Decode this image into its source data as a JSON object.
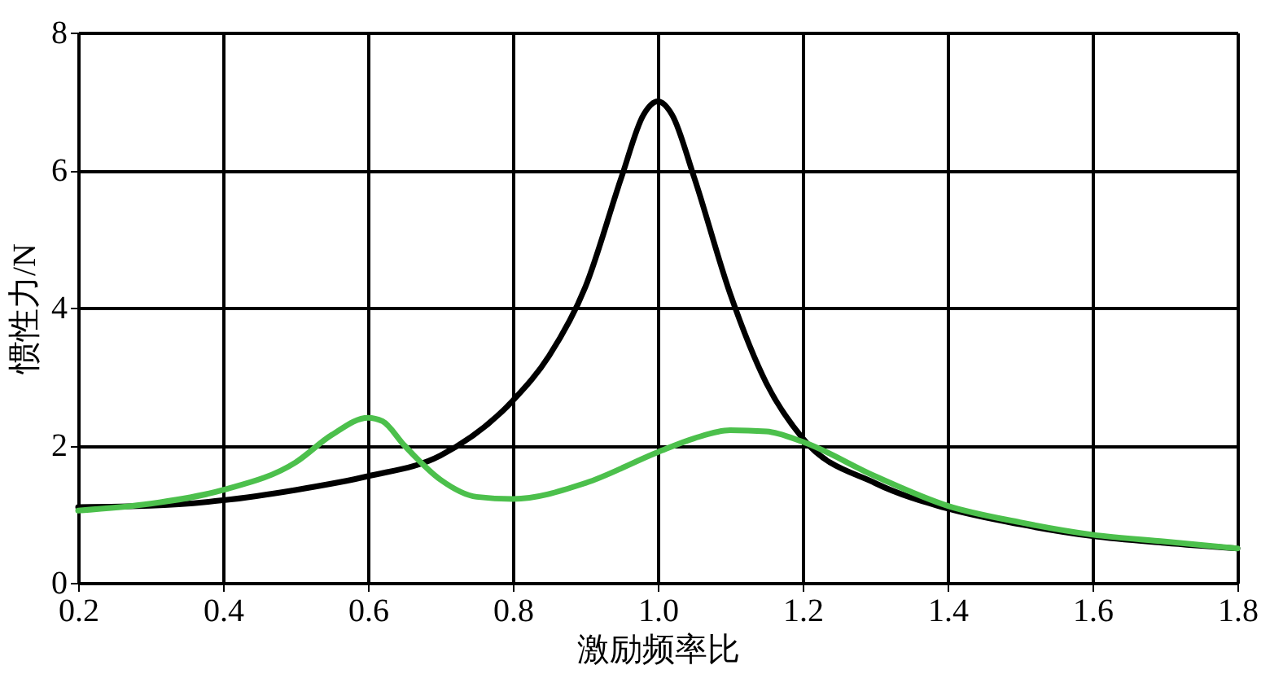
{
  "chart_data": {
    "type": "line",
    "xlabel": "激励频率比",
    "ylabel": "惯性力/N",
    "xlim": [
      0.2,
      1.8
    ],
    "xticks": [
      {
        "value": 0.2,
        "label": "0.2"
      },
      {
        "value": 0.4,
        "label": "0.4"
      },
      {
        "value": 0.6,
        "label": "0.6"
      },
      {
        "value": 0.8,
        "label": "0.8"
      },
      {
        "value": 1.0,
        "label": "1.0"
      },
      {
        "value": 1.2,
        "label": "1.2"
      },
      {
        "value": 1.4,
        "label": "1.4"
      },
      {
        "value": 1.6,
        "label": "1.6"
      },
      {
        "value": 1.8,
        "label": "1.8"
      }
    ],
    "ylim": [
      0,
      8
    ],
    "yticks": [
      0,
      2,
      4,
      6,
      8
    ],
    "grid": true,
    "marker": "none",
    "line_style": "solid",
    "series": [
      {
        "color": "#000000",
        "x": [
          0.2,
          0.3,
          0.4,
          0.5,
          0.6,
          0.7,
          0.8,
          0.85,
          0.9,
          0.95,
          0.98,
          1.0,
          1.02,
          1.05,
          1.1,
          1.15,
          1.2,
          1.3,
          1.4,
          1.5,
          1.6,
          1.7,
          1.8
        ],
        "values": [
          1.1,
          1.12,
          1.2,
          1.35,
          1.55,
          1.85,
          2.65,
          3.3,
          4.3,
          5.9,
          6.8,
          7.0,
          6.8,
          5.9,
          4.2,
          2.9,
          2.1,
          1.45,
          1.08,
          0.85,
          0.68,
          0.58,
          0.5
        ]
      },
      {
        "color": "#4cc04c",
        "x": [
          0.2,
          0.3,
          0.4,
          0.5,
          0.55,
          0.6,
          0.62,
          0.65,
          0.7,
          0.75,
          0.8,
          0.9,
          1.0,
          1.05,
          1.1,
          1.15,
          1.2,
          1.3,
          1.4,
          1.5,
          1.6,
          1.7,
          1.8
        ],
        "values": [
          1.05,
          1.15,
          1.35,
          1.75,
          2.15,
          2.4,
          2.35,
          2.0,
          1.5,
          1.25,
          1.22,
          1.45,
          1.9,
          2.1,
          2.22,
          2.2,
          2.05,
          1.55,
          1.12,
          0.88,
          0.7,
          0.6,
          0.5
        ]
      }
    ]
  }
}
